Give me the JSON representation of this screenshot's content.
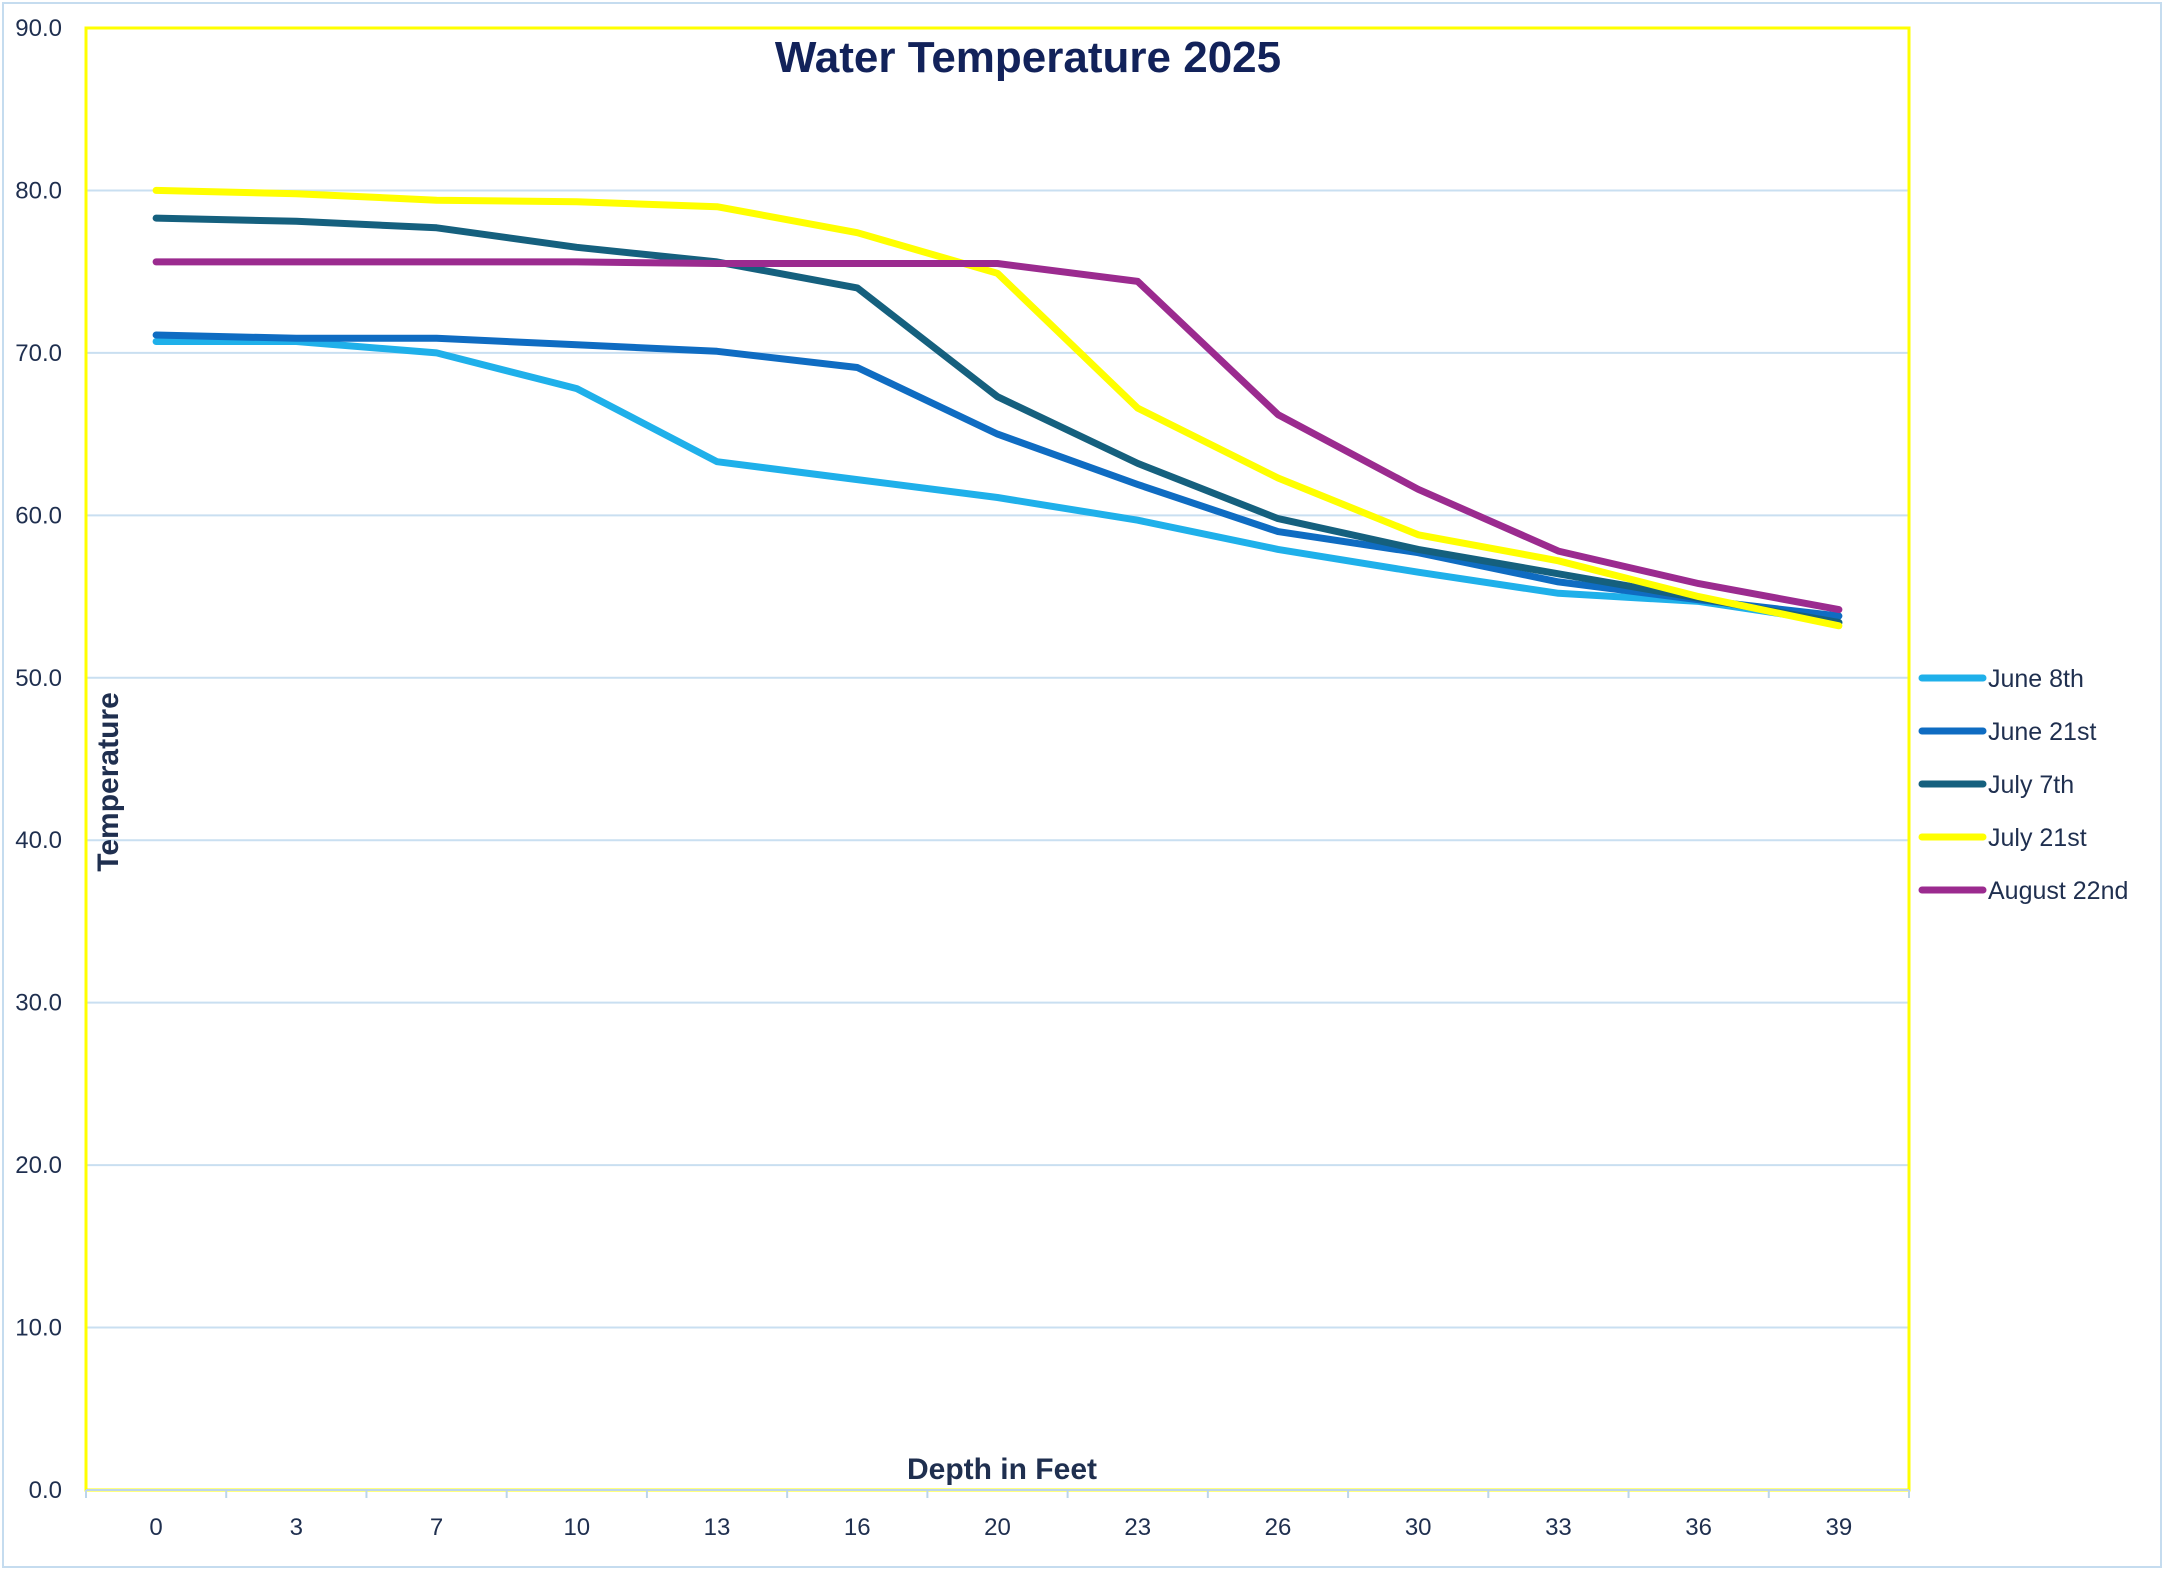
{
  "chart_data": {
    "type": "line",
    "title": "Water Temperature 2025",
    "xlabel": "Depth in Feet",
    "ylabel": "Temperature",
    "categories": [
      "0",
      "3",
      "7",
      "10",
      "13",
      "16",
      "20",
      "23",
      "26",
      "30",
      "33",
      "36",
      "39"
    ],
    "ylim": [
      0,
      90
    ],
    "yticks": [
      "0.0",
      "10.0",
      "20.0",
      "30.0",
      "40.0",
      "50.0",
      "60.0",
      "70.0",
      "80.0",
      "90.0"
    ],
    "grid": true,
    "legend_position": "right",
    "series": [
      {
        "name": "June 8th",
        "color": "#1fb0ea",
        "values": [
          70.7,
          70.7,
          70.0,
          67.8,
          63.3,
          62.2,
          61.1,
          59.7,
          57.9,
          56.5,
          55.2,
          54.7,
          53.4
        ]
      },
      {
        "name": "June 21st",
        "color": "#0f6cc2",
        "values": [
          71.1,
          70.9,
          70.9,
          70.5,
          70.1,
          69.1,
          65.0,
          61.9,
          59.0,
          57.7,
          55.9,
          54.8,
          53.8
        ]
      },
      {
        "name": "July 7th",
        "color": "#15607e",
        "values": [
          78.3,
          78.1,
          77.7,
          76.5,
          75.6,
          74.0,
          67.3,
          63.2,
          59.8,
          57.9,
          56.4,
          54.9,
          53.4
        ]
      },
      {
        "name": "July 21st",
        "color": "#ffff00",
        "values": [
          80.0,
          79.8,
          79.4,
          79.3,
          79.0,
          77.4,
          74.9,
          66.6,
          62.3,
          58.8,
          57.2,
          55.0,
          53.2
        ]
      },
      {
        "name": "August 22nd",
        "color": "#9b2b8f",
        "values": [
          75.6,
          75.6,
          75.6,
          75.6,
          75.5,
          75.5,
          75.5,
          74.4,
          66.2,
          61.6,
          57.8,
          55.8,
          54.2
        ]
      }
    ]
  }
}
